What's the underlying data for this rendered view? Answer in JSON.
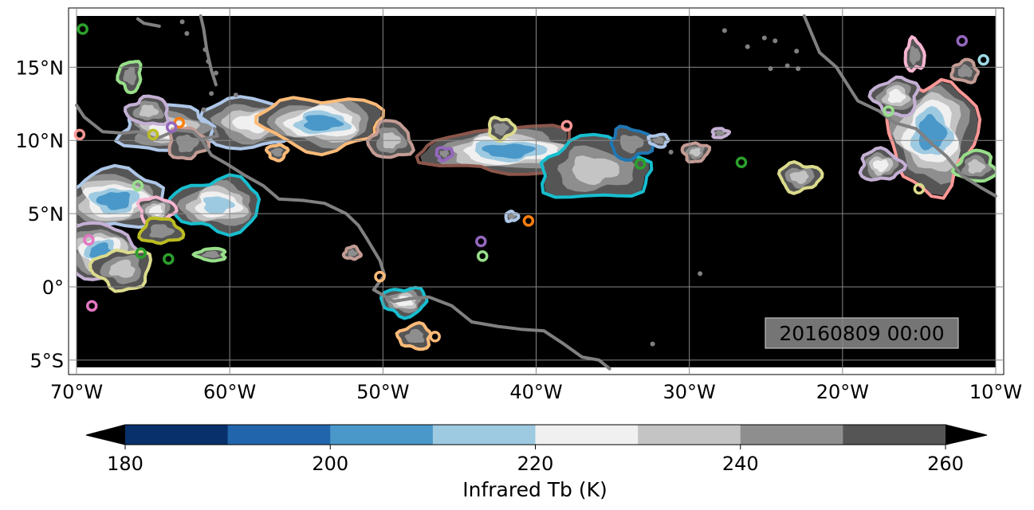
{
  "map": {
    "lon_range": [
      -70,
      -10
    ],
    "lat_range": [
      -5.5,
      18.5
    ],
    "lon_ticks": [
      {
        "value": -70,
        "label": "70°W"
      },
      {
        "value": -60,
        "label": "60°W"
      },
      {
        "value": -50,
        "label": "50°W"
      },
      {
        "value": -40,
        "label": "40°W"
      },
      {
        "value": -30,
        "label": "30°W"
      },
      {
        "value": -20,
        "label": "20°W"
      },
      {
        "value": -10,
        "label": "10°W"
      }
    ],
    "lat_ticks": [
      {
        "value": 15,
        "label": "15°N"
      },
      {
        "value": 10,
        "label": "10°N"
      },
      {
        "value": 5,
        "label": "5°N"
      },
      {
        "value": 0,
        "label": "0°"
      },
      {
        "value": -5,
        "label": "5°S"
      }
    ],
    "timestamp": "20160809 00:00",
    "background_color": "#000000",
    "coastline_color": "#808080",
    "grid_color": "#888888",
    "grid": true
  },
  "colorbar": {
    "label": "Infrared Tb (K)",
    "min": 180,
    "max": 260,
    "ticks": [
      {
        "value": 180,
        "label": "180"
      },
      {
        "value": 200,
        "label": "200"
      },
      {
        "value": 220,
        "label": "220"
      },
      {
        "value": 240,
        "label": "240"
      },
      {
        "value": 260,
        "label": "260"
      }
    ],
    "bins": [
      {
        "from": 180,
        "to": 190,
        "color": "#08306b"
      },
      {
        "from": 190,
        "to": 200,
        "color": "#2166ac"
      },
      {
        "from": 200,
        "to": 210,
        "color": "#4a98c9"
      },
      {
        "from": 210,
        "to": 220,
        "color": "#9ecae1"
      },
      {
        "from": 220,
        "to": 230,
        "color": "#f0f0f0"
      },
      {
        "from": 230,
        "to": 240,
        "color": "#c4c4c4"
      },
      {
        "from": 240,
        "to": 250,
        "color": "#8e8e8e"
      },
      {
        "from": 250,
        "to": 260,
        "color": "#555555"
      }
    ],
    "under_color": "#000000",
    "over_color": "#000000"
  },
  "cloud_systems": [
    {
      "lon": -64,
      "lat": 10.8,
      "rx": 3.0,
      "ry": 1.5,
      "core": 220,
      "outline": "#aec7e8"
    },
    {
      "lon": -58.5,
      "lat": 11.2,
      "rx": 3.2,
      "ry": 1.6,
      "core": 225,
      "outline": "#aec7e8"
    },
    {
      "lon": -54,
      "lat": 11.2,
      "rx": 3.8,
      "ry": 1.7,
      "core": 205,
      "outline": "#ffbb78"
    },
    {
      "lon": -60.8,
      "lat": 5.6,
      "rx": 2.8,
      "ry": 1.7,
      "core": 210,
      "outline": "#17becf"
    },
    {
      "lon": -67.5,
      "lat": 5.9,
      "rx": 3.4,
      "ry": 1.9,
      "core": 200,
      "outline": "#aec7e8"
    },
    {
      "lon": -68.4,
      "lat": 2.4,
      "rx": 2.2,
      "ry": 1.8,
      "core": 205,
      "outline": "#c5b0d5"
    },
    {
      "lon": -64.8,
      "lat": 5.2,
      "rx": 1.1,
      "ry": 0.9,
      "core": 225,
      "outline": "#f7b6d2"
    },
    {
      "lon": -67.0,
      "lat": 1.2,
      "rx": 1.8,
      "ry": 1.3,
      "core": 230,
      "outline": "#dbdb8d"
    },
    {
      "lon": -41.8,
      "lat": 9.3,
      "rx": 5.2,
      "ry": 1.5,
      "core": 205,
      "outline": "#8c564b"
    },
    {
      "lon": -36.2,
      "lat": 8.0,
      "rx": 3.4,
      "ry": 2.0,
      "core": 235,
      "outline": "#17becf"
    },
    {
      "lon": -33.8,
      "lat": 9.8,
      "rx": 1.3,
      "ry": 1.0,
      "core": 240,
      "outline": "#1f77b4"
    },
    {
      "lon": -14.2,
      "lat": 10.5,
      "rx": 2.8,
      "ry": 3.6,
      "core": 205,
      "outline": "#ff9896"
    },
    {
      "lon": -16.5,
      "lat": 13.0,
      "rx": 1.4,
      "ry": 1.2,
      "core": 225,
      "outline": "#c5b0d5"
    },
    {
      "lon": -11.3,
      "lat": 8.2,
      "rx": 1.2,
      "ry": 1.0,
      "core": 230,
      "outline": "#98df8a"
    },
    {
      "lon": -17.5,
      "lat": 8.3,
      "rx": 1.3,
      "ry": 1.0,
      "core": 225,
      "outline": "#c5b0d5"
    },
    {
      "lon": -22.8,
      "lat": 7.5,
      "rx": 1.3,
      "ry": 0.9,
      "core": 230,
      "outline": "#dbdb8d"
    },
    {
      "lon": -48.6,
      "lat": -1.0,
      "rx": 1.4,
      "ry": 0.9,
      "core": 225,
      "outline": "#17becf"
    },
    {
      "lon": -47.9,
      "lat": -3.4,
      "rx": 1.0,
      "ry": 0.8,
      "core": 240,
      "outline": "#ffbb78"
    },
    {
      "lon": -49.5,
      "lat": 10.0,
      "rx": 1.3,
      "ry": 1.2,
      "core": 235,
      "outline": "#c49c94"
    },
    {
      "lon": -62.8,
      "lat": 9.8,
      "rx": 1.2,
      "ry": 1.0,
      "core": 240,
      "outline": "#c49c94"
    },
    {
      "lon": -29.6,
      "lat": 9.2,
      "rx": 0.8,
      "ry": 0.6,
      "core": 235,
      "outline": "#c49c94"
    },
    {
      "lon": -66.5,
      "lat": 14.4,
      "rx": 0.7,
      "ry": 1.0,
      "core": 240,
      "outline": "#98df8a"
    },
    {
      "lon": -12.0,
      "lat": 14.7,
      "rx": 0.8,
      "ry": 0.7,
      "core": 240,
      "outline": "#c49c94"
    },
    {
      "lon": -15.3,
      "lat": 15.8,
      "rx": 0.6,
      "ry": 1.0,
      "core": 245,
      "outline": "#f7b6d2"
    },
    {
      "lon": -42.3,
      "lat": 10.8,
      "rx": 0.8,
      "ry": 0.7,
      "core": 240,
      "outline": "#dbdb8d"
    },
    {
      "lon": -56.9,
      "lat": 9.2,
      "rx": 0.6,
      "ry": 0.5,
      "core": 245,
      "outline": "#ffbb78"
    },
    {
      "lon": -61.2,
      "lat": 2.2,
      "rx": 0.9,
      "ry": 0.4,
      "core": 245,
      "outline": "#98df8a"
    },
    {
      "lon": -52.0,
      "lat": 2.3,
      "rx": 0.5,
      "ry": 0.4,
      "core": 245,
      "outline": "#c49c94"
    },
    {
      "lon": -41.6,
      "lat": 4.8,
      "rx": 0.4,
      "ry": 0.3,
      "core": 240,
      "outline": "#aec7e8"
    },
    {
      "lon": -46.0,
      "lat": 9.1,
      "rx": 0.5,
      "ry": 0.4,
      "core": 245,
      "outline": "#9467bd"
    },
    {
      "lon": -32.0,
      "lat": 10.0,
      "rx": 0.6,
      "ry": 0.4,
      "core": 245,
      "outline": "#aec7e8"
    },
    {
      "lon": -65.3,
      "lat": 12.0,
      "rx": 1.3,
      "ry": 0.9,
      "core": 235,
      "outline": "#c5b0d5"
    },
    {
      "lon": -64.5,
      "lat": 3.8,
      "rx": 1.3,
      "ry": 0.8,
      "core": 240,
      "outline": "#bcbd22"
    },
    {
      "lon": -28.0,
      "lat": 10.5,
      "rx": 0.5,
      "ry": 0.3,
      "core": 245,
      "outline": "#c5b0d5"
    }
  ],
  "track_markers": [
    {
      "lon": -63.3,
      "lat": 11.2,
      "color": "#ff7f0e"
    },
    {
      "lon": -65.0,
      "lat": 10.4,
      "color": "#bcbd22"
    },
    {
      "lon": -63.8,
      "lat": 10.9,
      "color": "#9467bd"
    },
    {
      "lon": -69.6,
      "lat": 17.6,
      "color": "#2ca02c"
    },
    {
      "lon": -69.8,
      "lat": 10.4,
      "color": "#ff9896"
    },
    {
      "lon": -26.6,
      "lat": 8.5,
      "color": "#2ca02c"
    },
    {
      "lon": -33.2,
      "lat": 8.4,
      "color": "#2ca02c"
    },
    {
      "lon": -40.5,
      "lat": 4.5,
      "color": "#ff7f0e"
    },
    {
      "lon": -43.6,
      "lat": 3.1,
      "color": "#9467bd"
    },
    {
      "lon": -43.5,
      "lat": 2.1,
      "color": "#98df8a"
    },
    {
      "lon": -65.8,
      "lat": 2.3,
      "color": "#2ca02c"
    },
    {
      "lon": -64.0,
      "lat": 1.9,
      "color": "#2ca02c"
    },
    {
      "lon": -50.2,
      "lat": 0.7,
      "color": "#ffbb78"
    },
    {
      "lon": -46.6,
      "lat": -3.4,
      "color": "#ffbb78"
    },
    {
      "lon": -66.0,
      "lat": 6.9,
      "color": "#98df8a"
    },
    {
      "lon": -38.0,
      "lat": 11.0,
      "color": "#ff9896"
    },
    {
      "lon": -10.8,
      "lat": 15.5,
      "color": "#9edae5"
    },
    {
      "lon": -12.2,
      "lat": 16.8,
      "color": "#9467bd"
    },
    {
      "lon": -15.0,
      "lat": 6.7,
      "color": "#dbdb8d"
    },
    {
      "lon": -17.0,
      "lat": 12.0,
      "color": "#98df8a"
    },
    {
      "lon": -69.0,
      "lat": -1.3,
      "color": "#e377c2"
    },
    {
      "lon": -69.2,
      "lat": 3.2,
      "color": "#e377c2"
    }
  ],
  "coastlines": [
    [
      [
        -70,
        12.4
      ],
      [
        -69.5,
        11.6
      ],
      [
        -68.3,
        10.6
      ],
      [
        -67.0,
        10.5
      ],
      [
        -66.0,
        10.6
      ],
      [
        -64.8,
        10.1
      ],
      [
        -63.5,
        10.7
      ],
      [
        -62.4,
        10.6
      ],
      [
        -61.8,
        10.0
      ],
      [
        -61.2,
        9.0
      ],
      [
        -60.2,
        8.4
      ],
      [
        -59.0,
        7.6
      ],
      [
        -57.8,
        6.9
      ],
      [
        -56.8,
        6.0
      ],
      [
        -55.2,
        5.9
      ],
      [
        -53.8,
        5.7
      ],
      [
        -52.4,
        5.0
      ],
      [
        -51.6,
        4.2
      ],
      [
        -51.0,
        3.2
      ],
      [
        -50.2,
        1.8
      ],
      [
        -49.9,
        0.8
      ],
      [
        -50.6,
        -0.2
      ],
      [
        -49.3,
        -1.0
      ],
      [
        -48.2,
        -0.8
      ],
      [
        -47.0,
        -0.7
      ],
      [
        -45.5,
        -1.3
      ],
      [
        -44.2,
        -2.4
      ],
      [
        -42.5,
        -2.7
      ],
      [
        -41.0,
        -2.9
      ],
      [
        -39.5,
        -3.0
      ],
      [
        -38.2,
        -3.9
      ],
      [
        -37.0,
        -4.8
      ],
      [
        -35.9,
        -5.0
      ],
      [
        -35.2,
        -5.6
      ]
    ],
    [
      [
        -22.5,
        18.5
      ],
      [
        -21.5,
        16.0
      ],
      [
        -20.4,
        15.0
      ],
      [
        -19.0,
        12.7
      ],
      [
        -17.6,
        12.0
      ],
      [
        -16.6,
        11.2
      ],
      [
        -15.2,
        10.8
      ],
      [
        -14.2,
        9.8
      ],
      [
        -13.2,
        8.9
      ],
      [
        -12.2,
        7.6
      ],
      [
        -11.0,
        6.8
      ],
      [
        -10.0,
        6.2
      ]
    ],
    [
      [
        -61.9,
        18.5
      ],
      [
        -61.7,
        17.6
      ],
      [
        -61.5,
        16.2
      ],
      [
        -61.2,
        14.8
      ],
      [
        -60.9,
        13.8
      ]
    ],
    [
      [
        -66.0,
        18.3
      ],
      [
        -65.6,
        18.0
      ],
      [
        -64.6,
        17.8
      ]
    ],
    [
      [
        -61.0,
        10.8
      ],
      [
        -60.8,
        10.3
      ],
      [
        -61.8,
        10.1
      ]
    ]
  ],
  "islands": [
    {
      "lon": -59.6,
      "lat": 13.1
    },
    {
      "lon": -61.4,
      "lat": 15.4
    },
    {
      "lon": -61.6,
      "lat": 16.2
    },
    {
      "lon": -60.9,
      "lat": 14.6
    },
    {
      "lon": -61.7,
      "lat": 12.1
    },
    {
      "lon": -61.2,
      "lat": 13.2
    },
    {
      "lon": -62.8,
      "lat": 17.3
    },
    {
      "lon": -63.1,
      "lat": 18.1
    },
    {
      "lon": -23.6,
      "lat": 15.1
    },
    {
      "lon": -24.4,
      "lat": 16.8
    },
    {
      "lon": -23.0,
      "lat": 16.1
    },
    {
      "lon": -25.1,
      "lat": 17.0
    },
    {
      "lon": -22.9,
      "lat": 14.9
    },
    {
      "lon": -24.7,
      "lat": 14.9
    },
    {
      "lon": -32.4,
      "lat": -3.9
    },
    {
      "lon": -29.3,
      "lat": 0.9
    },
    {
      "lon": -27.7,
      "lat": 17.5
    },
    {
      "lon": -26.2,
      "lat": 16.4
    },
    {
      "lon": -31.2,
      "lat": 9.2
    }
  ]
}
